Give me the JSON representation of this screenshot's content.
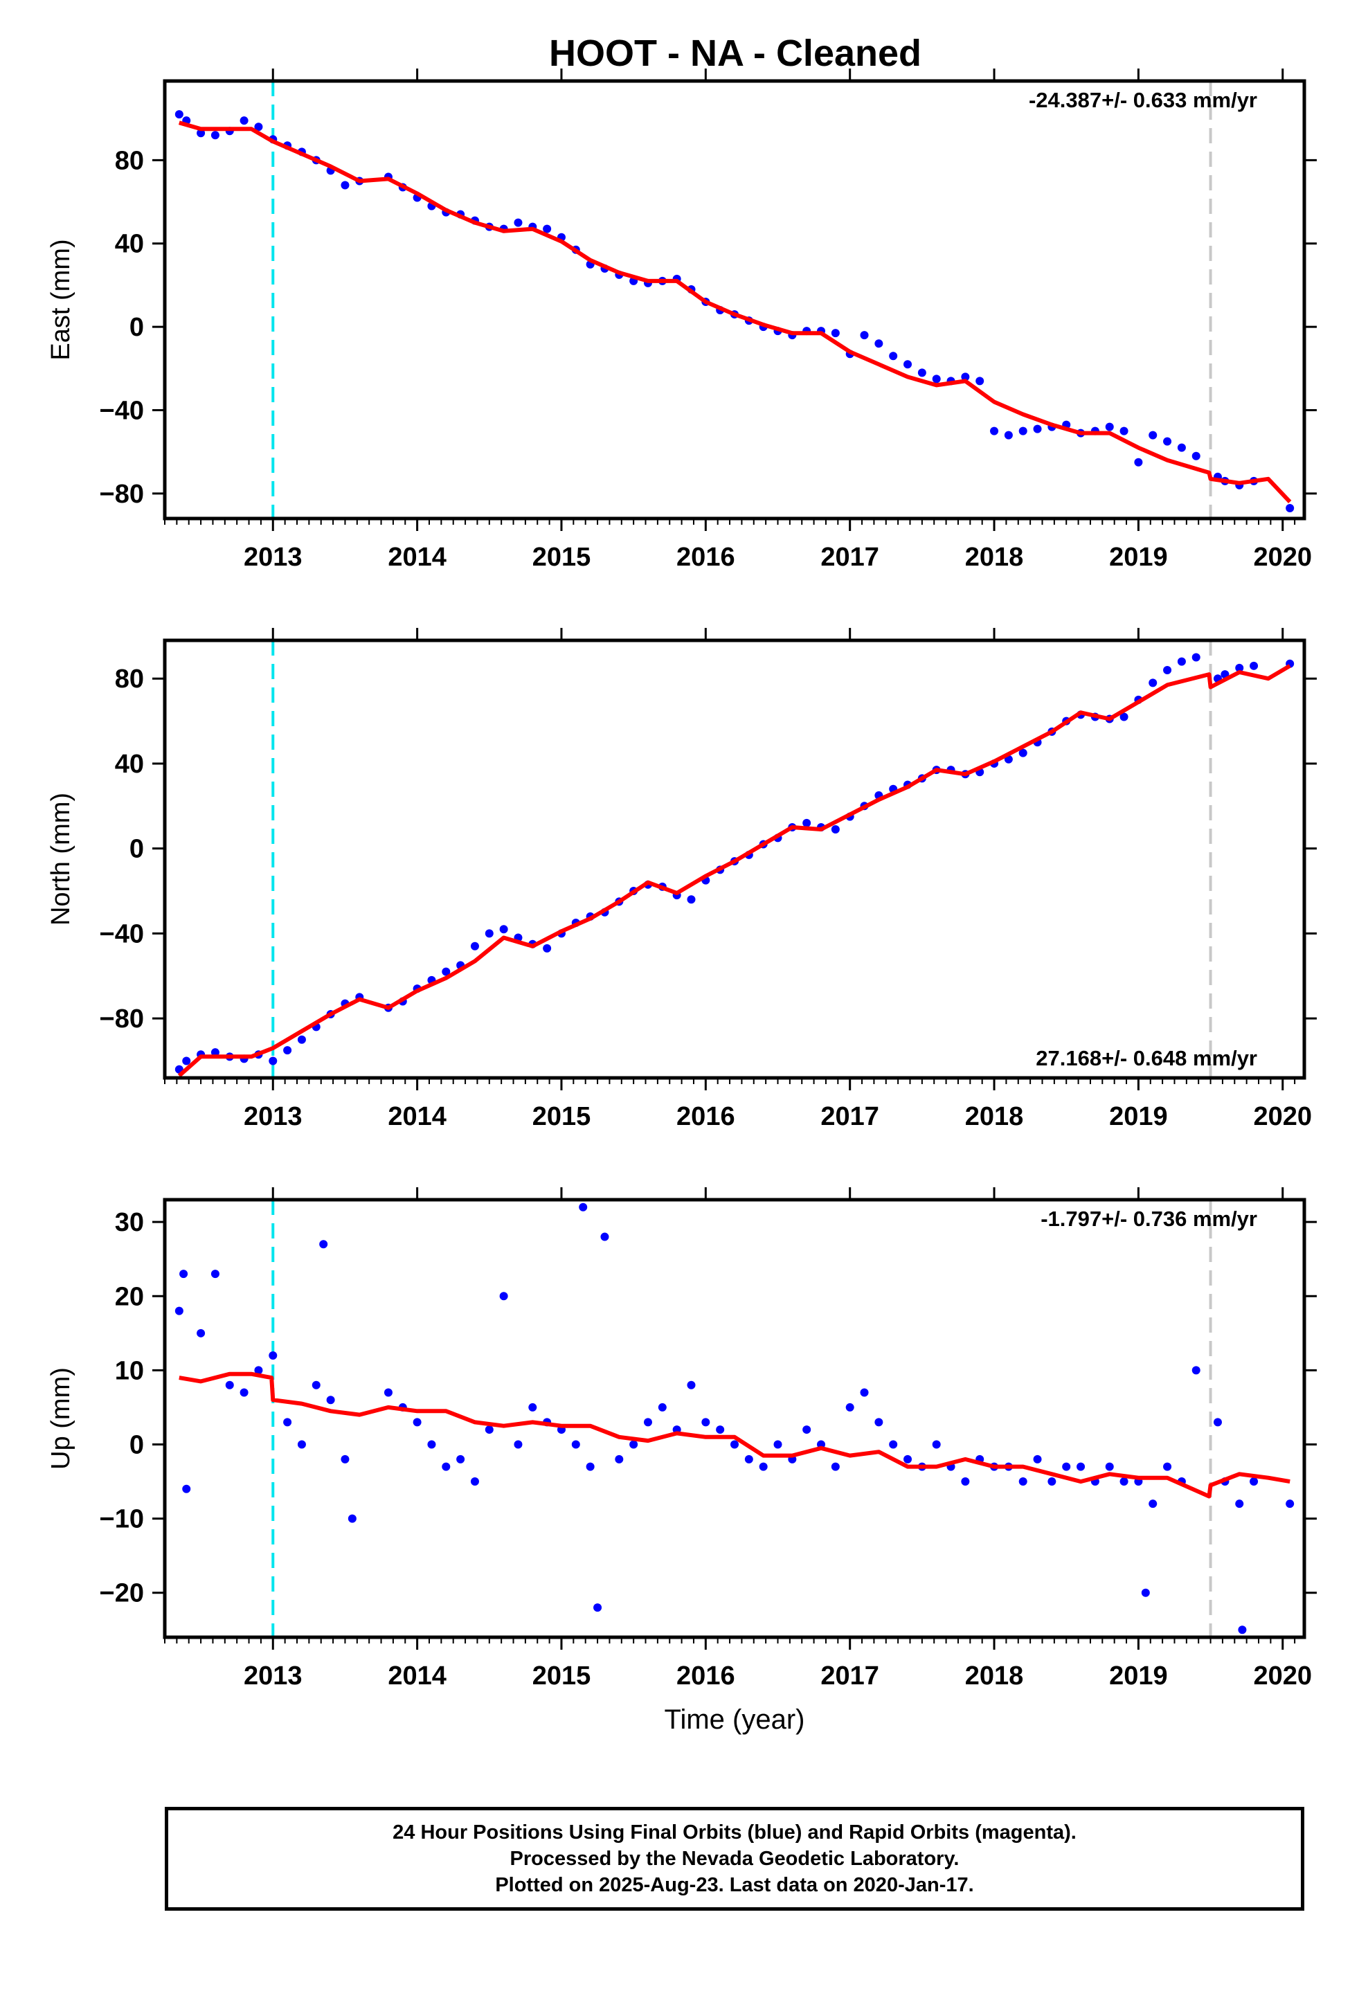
{
  "title": "HOOT  - NA - Cleaned",
  "colors": {
    "points": "#0000ff",
    "fit": "#ff0000",
    "start_line": "#00e5ee",
    "event_line": "#c8c8c8",
    "axes": "#000000"
  },
  "chart_data": [
    {
      "type": "scatter",
      "ylabel": "East (mm)",
      "xlabel": "",
      "rate_label": "-24.387+/- 0.633 mm/yr",
      "rate_position": "top-right",
      "xlim": [
        2012.25,
        2020.15
      ],
      "ylim": [
        -92,
        118
      ],
      "xticks": [
        2013,
        2014,
        2015,
        2016,
        2017,
        2018,
        2019,
        2020
      ],
      "yticks": [
        80,
        40,
        0,
        -40,
        -80
      ],
      "ytick_labels": [
        "80",
        "40",
        "0",
        "−40",
        "−80"
      ],
      "vlines": [
        {
          "x": 2013.0,
          "style": "dashed",
          "color": "cyan"
        },
        {
          "x": 2019.5,
          "style": "dashed",
          "color": "gray"
        }
      ],
      "series": [
        {
          "kind": "points",
          "x": [
            2012.35,
            2012.4,
            2012.5,
            2012.6,
            2012.7,
            2012.8,
            2012.9,
            2013.0,
            2013.1,
            2013.2,
            2013.3,
            2013.4,
            2013.5,
            2013.6,
            2013.8,
            2013.9,
            2014.0,
            2014.1,
            2014.2,
            2014.3,
            2014.4,
            2014.5,
            2014.6,
            2014.7,
            2014.8,
            2014.9,
            2015.0,
            2015.1,
            2015.2,
            2015.3,
            2015.4,
            2015.5,
            2015.6,
            2015.7,
            2015.8,
            2015.9,
            2016.0,
            2016.1,
            2016.2,
            2016.3,
            2016.4,
            2016.5,
            2016.6,
            2016.7,
            2016.8,
            2016.9,
            2017.0,
            2017.1,
            2017.2,
            2017.3,
            2017.4,
            2017.5,
            2017.6,
            2017.7,
            2017.8,
            2017.9,
            2018.0,
            2018.1,
            2018.2,
            2018.3,
            2018.4,
            2018.5,
            2018.6,
            2018.7,
            2018.8,
            2018.9,
            2019.0,
            2019.1,
            2019.2,
            2019.3,
            2019.4,
            2019.55,
            2019.6,
            2019.7,
            2019.8,
            2020.05
          ],
          "y": [
            102,
            99,
            93,
            92,
            94,
            99,
            96,
            90,
            87,
            84,
            80,
            75,
            68,
            70,
            72,
            67,
            62,
            58,
            55,
            54,
            51,
            48,
            47,
            50,
            48,
            47,
            43,
            37,
            30,
            28,
            25,
            22,
            21,
            22,
            23,
            18,
            12,
            8,
            6,
            3,
            0,
            -2,
            -4,
            -2,
            -2,
            -3,
            -13,
            -4,
            -8,
            -14,
            -18,
            -22,
            -25,
            -26,
            -24,
            -26,
            -50,
            -52,
            -50,
            -49,
            -48,
            -47,
            -51,
            -50,
            -48,
            -50,
            -65,
            -52,
            -55,
            -58,
            -62,
            -72,
            -74,
            -76,
            -74,
            -87
          ]
        },
        {
          "kind": "fit",
          "x": [
            2012.35,
            2012.5,
            2012.7,
            2012.85,
            2013.0,
            2013.2,
            2013.4,
            2013.6,
            2013.8,
            2014.0,
            2014.2,
            2014.4,
            2014.6,
            2014.8,
            2015.0,
            2015.2,
            2015.4,
            2015.6,
            2015.8,
            2016.0,
            2016.2,
            2016.4,
            2016.6,
            2016.8,
            2017.0,
            2017.2,
            2017.4,
            2017.6,
            2017.8,
            2018.0,
            2018.2,
            2018.4,
            2018.6,
            2018.8,
            2019.0,
            2019.2,
            2019.49,
            2019.5,
            2019.7,
            2019.9,
            2020.05
          ],
          "y": [
            98,
            95,
            95,
            95,
            89,
            83,
            77,
            70,
            71,
            64,
            56,
            50,
            46,
            47,
            41,
            32,
            26,
            22,
            22,
            12,
            6,
            1,
            -3,
            -3,
            -12,
            -18,
            -24,
            -28,
            -26,
            -36,
            -42,
            -47,
            -51,
            -51,
            -58,
            -64,
            -70,
            -73,
            -75,
            -73,
            -84
          ]
        }
      ]
    },
    {
      "type": "scatter",
      "ylabel": "North (mm)",
      "xlabel": "",
      "rate_label": "27.168+/- 0.648 mm/yr",
      "rate_position": "bottom-right",
      "xlim": [
        2012.25,
        2020.15
      ],
      "ylim": [
        -108,
        98
      ],
      "xticks": [
        2013,
        2014,
        2015,
        2016,
        2017,
        2018,
        2019,
        2020
      ],
      "yticks": [
        80,
        40,
        0,
        -40,
        -80
      ],
      "ytick_labels": [
        "80",
        "40",
        "0",
        "−40",
        "−80"
      ],
      "vlines": [
        {
          "x": 2013.0,
          "style": "dashed",
          "color": "cyan"
        },
        {
          "x": 2019.5,
          "style": "dashed",
          "color": "gray"
        }
      ],
      "series": [
        {
          "kind": "points",
          "x": [
            2012.35,
            2012.4,
            2012.5,
            2012.6,
            2012.7,
            2012.8,
            2012.9,
            2013.0,
            2013.1,
            2013.2,
            2013.3,
            2013.4,
            2013.5,
            2013.6,
            2013.8,
            2013.9,
            2014.0,
            2014.1,
            2014.2,
            2014.3,
            2014.4,
            2014.5,
            2014.6,
            2014.7,
            2014.8,
            2014.9,
            2015.0,
            2015.1,
            2015.2,
            2015.3,
            2015.4,
            2015.5,
            2015.6,
            2015.7,
            2015.8,
            2015.9,
            2016.0,
            2016.1,
            2016.2,
            2016.3,
            2016.4,
            2016.5,
            2016.6,
            2016.7,
            2016.8,
            2016.9,
            2017.0,
            2017.1,
            2017.2,
            2017.3,
            2017.4,
            2017.5,
            2017.6,
            2017.7,
            2017.8,
            2017.9,
            2018.0,
            2018.1,
            2018.2,
            2018.3,
            2018.4,
            2018.5,
            2018.6,
            2018.7,
            2018.8,
            2018.9,
            2019.0,
            2019.1,
            2019.2,
            2019.3,
            2019.4,
            2019.55,
            2019.6,
            2019.7,
            2019.8,
            2020.05
          ],
          "y": [
            -104,
            -100,
            -97,
            -96,
            -98,
            -99,
            -97,
            -100,
            -95,
            -90,
            -84,
            -78,
            -73,
            -70,
            -75,
            -72,
            -66,
            -62,
            -58,
            -55,
            -46,
            -40,
            -38,
            -42,
            -45,
            -47,
            -40,
            -35,
            -32,
            -30,
            -25,
            -20,
            -17,
            -18,
            -22,
            -24,
            -15,
            -10,
            -6,
            -3,
            2,
            5,
            10,
            12,
            10,
            9,
            15,
            20,
            25,
            28,
            30,
            33,
            37,
            37,
            35,
            36,
            40,
            42,
            45,
            50,
            55,
            60,
            63,
            62,
            61,
            62,
            70,
            78,
            84,
            88,
            90,
            80,
            82,
            85,
            86,
            87
          ]
        },
        {
          "kind": "fit",
          "x": [
            2012.35,
            2012.5,
            2012.7,
            2012.85,
            2013.0,
            2013.2,
            2013.4,
            2013.6,
            2013.8,
            2014.0,
            2014.2,
            2014.4,
            2014.6,
            2014.8,
            2015.0,
            2015.2,
            2015.4,
            2015.6,
            2015.8,
            2016.0,
            2016.2,
            2016.4,
            2016.6,
            2016.8,
            2017.0,
            2017.2,
            2017.4,
            2017.6,
            2017.8,
            2018.0,
            2018.2,
            2018.4,
            2018.6,
            2018.8,
            2019.0,
            2019.2,
            2019.49,
            2019.5,
            2019.7,
            2019.9,
            2020.05
          ],
          "y": [
            -107,
            -98,
            -98,
            -98,
            -94,
            -86,
            -78,
            -71,
            -75,
            -67,
            -61,
            -53,
            -42,
            -46,
            -39,
            -33,
            -25,
            -16,
            -21,
            -13,
            -6,
            2,
            10,
            9,
            16,
            23,
            29,
            37,
            35,
            41,
            48,
            55,
            64,
            61,
            69,
            77,
            82,
            76,
            83,
            80,
            86
          ]
        }
      ]
    },
    {
      "type": "scatter",
      "ylabel": "Up (mm)",
      "xlabel": "Time (year)",
      "rate_label": "-1.797+/- 0.736 mm/yr",
      "rate_position": "top-right",
      "xlim": [
        2012.25,
        2020.15
      ],
      "ylim": [
        -26,
        33
      ],
      "xticks": [
        2013,
        2014,
        2015,
        2016,
        2017,
        2018,
        2019,
        2020
      ],
      "yticks": [
        30,
        20,
        10,
        0,
        -10,
        -20
      ],
      "ytick_labels": [
        "30",
        "20",
        "10",
        "0",
        "−10",
        "−20"
      ],
      "vlines": [
        {
          "x": 2013.0,
          "style": "dashed",
          "color": "cyan"
        },
        {
          "x": 2019.5,
          "style": "dashed",
          "color": "gray"
        }
      ],
      "series": [
        {
          "kind": "points",
          "x": [
            2012.35,
            2012.38,
            2012.4,
            2012.5,
            2012.6,
            2012.7,
            2012.8,
            2012.9,
            2013.0,
            2013.1,
            2013.2,
            2013.3,
            2013.35,
            2013.4,
            2013.5,
            2013.55,
            2013.8,
            2013.9,
            2014.0,
            2014.1,
            2014.2,
            2014.3,
            2014.4,
            2014.5,
            2014.6,
            2014.7,
            2014.8,
            2014.9,
            2015.0,
            2015.1,
            2015.15,
            2015.2,
            2015.25,
            2015.3,
            2015.4,
            2015.5,
            2015.6,
            2015.7,
            2015.8,
            2015.9,
            2016.0,
            2016.1,
            2016.2,
            2016.3,
            2016.4,
            2016.5,
            2016.6,
            2016.7,
            2016.8,
            2016.9,
            2017.0,
            2017.1,
            2017.2,
            2017.3,
            2017.4,
            2017.5,
            2017.6,
            2017.7,
            2017.8,
            2017.9,
            2018.0,
            2018.1,
            2018.2,
            2018.3,
            2018.4,
            2018.5,
            2018.6,
            2018.7,
            2018.8,
            2018.9,
            2019.0,
            2019.05,
            2019.1,
            2019.2,
            2019.3,
            2019.4,
            2019.55,
            2019.6,
            2019.7,
            2019.72,
            2019.8,
            2020.05
          ],
          "y": [
            18,
            23,
            -6,
            15,
            23,
            8,
            7,
            10,
            12,
            3,
            0,
            8,
            27,
            6,
            -2,
            -10,
            7,
            5,
            3,
            0,
            -3,
            -2,
            -5,
            2,
            20,
            0,
            5,
            3,
            2,
            0,
            32,
            -3,
            -22,
            28,
            -2,
            0,
            3,
            5,
            2,
            8,
            3,
            2,
            0,
            -2,
            -3,
            0,
            -2,
            2,
            0,
            -3,
            5,
            7,
            3,
            0,
            -2,
            -3,
            0,
            -3,
            -5,
            -2,
            -3,
            -3,
            -5,
            -2,
            -5,
            -3,
            -3,
            -5,
            -3,
            -5,
            -5,
            -20,
            -8,
            -3,
            -5,
            10,
            3,
            -5,
            -8,
            -25,
            -5,
            -8
          ]
        },
        {
          "kind": "fit",
          "x": [
            2012.35,
            2012.5,
            2012.7,
            2012.85,
            2012.99,
            2013.0,
            2013.2,
            2013.4,
            2013.6,
            2013.8,
            2014.0,
            2014.2,
            2014.4,
            2014.6,
            2014.8,
            2015.0,
            2015.2,
            2015.4,
            2015.6,
            2015.8,
            2016.0,
            2016.2,
            2016.4,
            2016.6,
            2016.8,
            2017.0,
            2017.2,
            2017.4,
            2017.6,
            2017.8,
            2018.0,
            2018.2,
            2018.4,
            2018.6,
            2018.8,
            2019.0,
            2019.2,
            2019.49,
            2019.5,
            2019.7,
            2019.9,
            2020.05
          ],
          "y": [
            9,
            8.5,
            9.5,
            9.5,
            9,
            6,
            5.5,
            4.5,
            4,
            5,
            4.5,
            4.5,
            3,
            2.5,
            3,
            2.5,
            2.5,
            1,
            0.5,
            1.5,
            1,
            1,
            -1.5,
            -1.5,
            -0.5,
            -1.5,
            -1,
            -3,
            -3,
            -2,
            -3,
            -3,
            -4,
            -5,
            -4,
            -4.5,
            -4.5,
            -7,
            -5.5,
            -4,
            -4.5,
            -5
          ]
        }
      ]
    }
  ],
  "footer": {
    "line1": "24 Hour Positions Using Final Orbits (blue) and Rapid Orbits (magenta).",
    "line2": "Processed by the Nevada Geodetic Laboratory.",
    "line3": "Plotted on 2025-Aug-23. Last data on 2020-Jan-17."
  }
}
